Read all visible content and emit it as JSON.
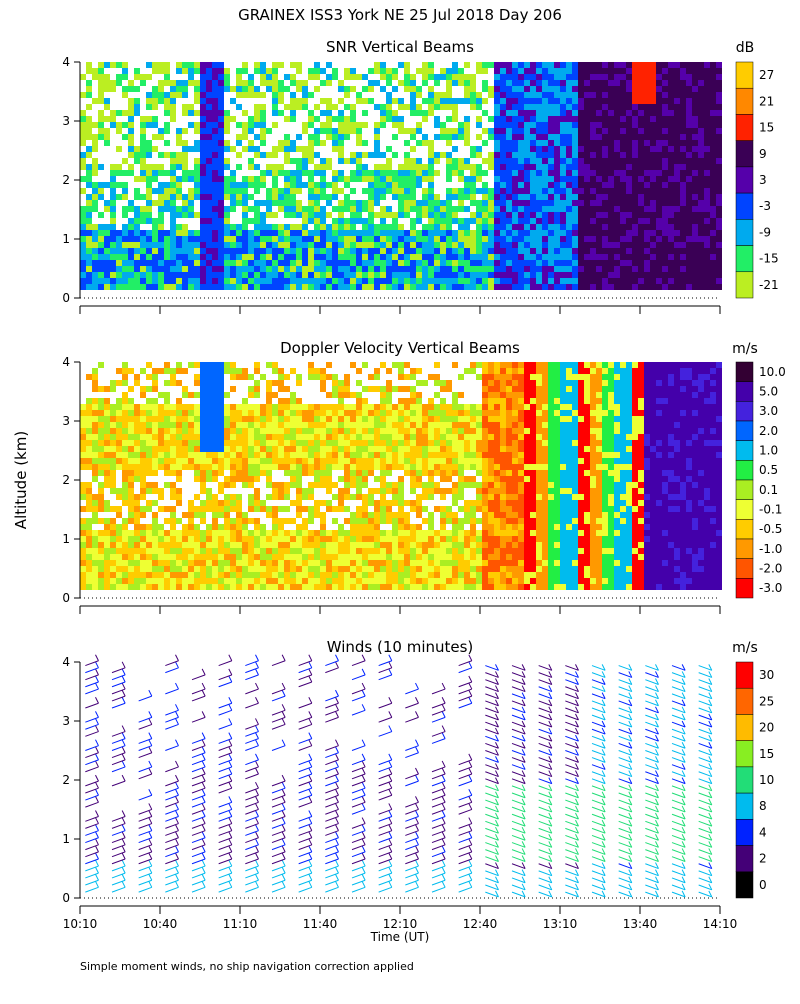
{
  "title": "GRAINEX ISS3 York NE  25 Jul 2018 Day 206",
  "footer": "Simple moment winds, no ship navigation correction applied",
  "ylabel": "Altitude (km)",
  "xlabel": "Time (UT)",
  "x_ticks": [
    "10:10",
    "10:40",
    "11:10",
    "11:40",
    "12:10",
    "12:40",
    "13:10",
    "13:40",
    "14:10"
  ],
  "y_ticks": [
    "0",
    "1",
    "2",
    "3",
    "4"
  ],
  "chart_data": [
    {
      "type": "heatmap",
      "title": "SNR Vertical Beams",
      "units": "dB",
      "x_range": [
        "10:10",
        "14:10"
      ],
      "ylim": [
        0,
        4
      ],
      "colorbar": {
        "labels": [
          "27",
          "21",
          "15",
          "9",
          "3",
          "-3",
          "-9",
          "-15",
          "-21"
        ],
        "colors": [
          "#ffcc00",
          "#ff8800",
          "#ff2200",
          "#3a0055",
          "#5500aa",
          "#0044ff",
          "#00aaee",
          "#22ee66",
          "#bbee22"
        ]
      }
    },
    {
      "type": "heatmap",
      "title": "Doppler Velocity Vertical Beams",
      "units": "m/s",
      "x_range": [
        "10:10",
        "14:10"
      ],
      "ylim": [
        0,
        4
      ],
      "colorbar": {
        "labels": [
          "10.0",
          "5.0",
          "3.0",
          "2.0",
          "1.0",
          "0.5",
          "0.1",
          "-0.1",
          "-0.5",
          "-1.0",
          "-2.0",
          "-3.0"
        ],
        "colors": [
          "#330033",
          "#4400aa",
          "#4422dd",
          "#0066ff",
          "#00bbee",
          "#22ee44",
          "#aaee22",
          "#eeff33",
          "#ffcc00",
          "#ff9900",
          "#ff5500",
          "#ff0000"
        ]
      }
    },
    {
      "type": "scatter",
      "title": "Winds (10 minutes)",
      "units": "m/s",
      "x_range": [
        "10:10",
        "14:10"
      ],
      "ylim": [
        0,
        4
      ],
      "colorbar": {
        "labels": [
          "30",
          "25",
          "20",
          "15",
          "10",
          "8",
          "4",
          "2",
          "0"
        ],
        "colors": [
          "#ff0000",
          "#ff6600",
          "#ffbb00",
          "#88ee22",
          "#22dd77",
          "#00bbee",
          "#0022ff",
          "#440077",
          "#000000"
        ]
      }
    }
  ]
}
